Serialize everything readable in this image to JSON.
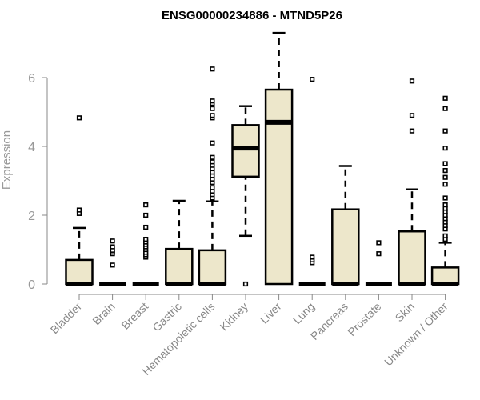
{
  "chart_data": {
    "type": "boxplot",
    "title": "ENSG00000234886 - MTND5P26",
    "xlabel": "",
    "ylabel": "Expression",
    "ylim": [
      0,
      7.4
    ],
    "yticks": [
      0,
      2,
      4,
      6
    ],
    "grid": false,
    "box_color": "#EDE7CB",
    "categories": [
      "Bladder",
      "Brain",
      "Breast",
      "Gastric",
      "Hematopoietic cells",
      "Kidney",
      "Liver",
      "Lung",
      "Pancreas",
      "Prostate",
      "Skin",
      "Unknown / Other"
    ],
    "boxes": [
      {
        "q1": 0,
        "median": 0,
        "q3": 0.7,
        "whisker_low": 0,
        "whisker_high": 1.63,
        "outliers": [
          2.05,
          2.15,
          4.83
        ]
      },
      {
        "q1": 0,
        "median": 0,
        "q3": 0,
        "whisker_low": 0,
        "whisker_high": 0,
        "outliers": [
          0.55,
          0.88,
          0.93,
          0.98,
          1.08,
          1.25
        ]
      },
      {
        "q1": 0,
        "median": 0,
        "q3": 0,
        "whisker_low": 0,
        "whisker_high": 0,
        "outliers": [
          0.78,
          0.85,
          0.92,
          1.0,
          1.08,
          1.15,
          1.22,
          1.3,
          1.65,
          2.0,
          2.3
        ]
      },
      {
        "q1": 0,
        "median": 0,
        "q3": 1.02,
        "whisker_low": 0,
        "whisker_high": 2.42,
        "outliers": []
      },
      {
        "q1": 0,
        "median": 0,
        "q3": 0.98,
        "whisker_low": 0,
        "whisker_high": 2.4,
        "outliers": [
          2.5,
          2.6,
          2.7,
          2.8,
          2.95,
          3.05,
          3.15,
          3.25,
          3.35,
          3.45,
          3.55,
          3.68,
          4.1,
          4.83,
          4.9,
          5.1,
          5.25,
          5.32,
          6.25
        ]
      },
      {
        "q1": 3.12,
        "median": 3.95,
        "q3": 4.62,
        "whisker_low": 1.4,
        "whisker_high": 5.17,
        "outliers": [
          0
        ]
      },
      {
        "q1": 0,
        "median": 4.7,
        "q3": 5.65,
        "whisker_low": 0,
        "whisker_high": 7.3,
        "outliers": []
      },
      {
        "q1": 0,
        "median": 0,
        "q3": 0,
        "whisker_low": 0,
        "whisker_high": 0,
        "outliers": [
          0.62,
          0.7,
          0.78,
          5.95
        ]
      },
      {
        "q1": 0,
        "median": 0,
        "q3": 2.17,
        "whisker_low": 0,
        "whisker_high": 3.43,
        "outliers": []
      },
      {
        "q1": 0,
        "median": 0,
        "q3": 0,
        "whisker_low": 0,
        "whisker_high": 0,
        "outliers": [
          0.88,
          1.2
        ]
      },
      {
        "q1": 0,
        "median": 0,
        "q3": 1.53,
        "whisker_low": 0,
        "whisker_high": 2.75,
        "outliers": [
          4.45,
          4.9,
          5.9
        ]
      },
      {
        "q1": 0,
        "median": 0,
        "q3": 0.48,
        "whisker_low": 0,
        "whisker_high": 1.2,
        "outliers": [
          1.3,
          1.4,
          1.6,
          1.7,
          1.8,
          1.9,
          2.0,
          2.1,
          2.2,
          2.3,
          2.5,
          2.9,
          3.1,
          3.3,
          3.5,
          3.95,
          4.45,
          5.1,
          5.4
        ]
      }
    ]
  }
}
